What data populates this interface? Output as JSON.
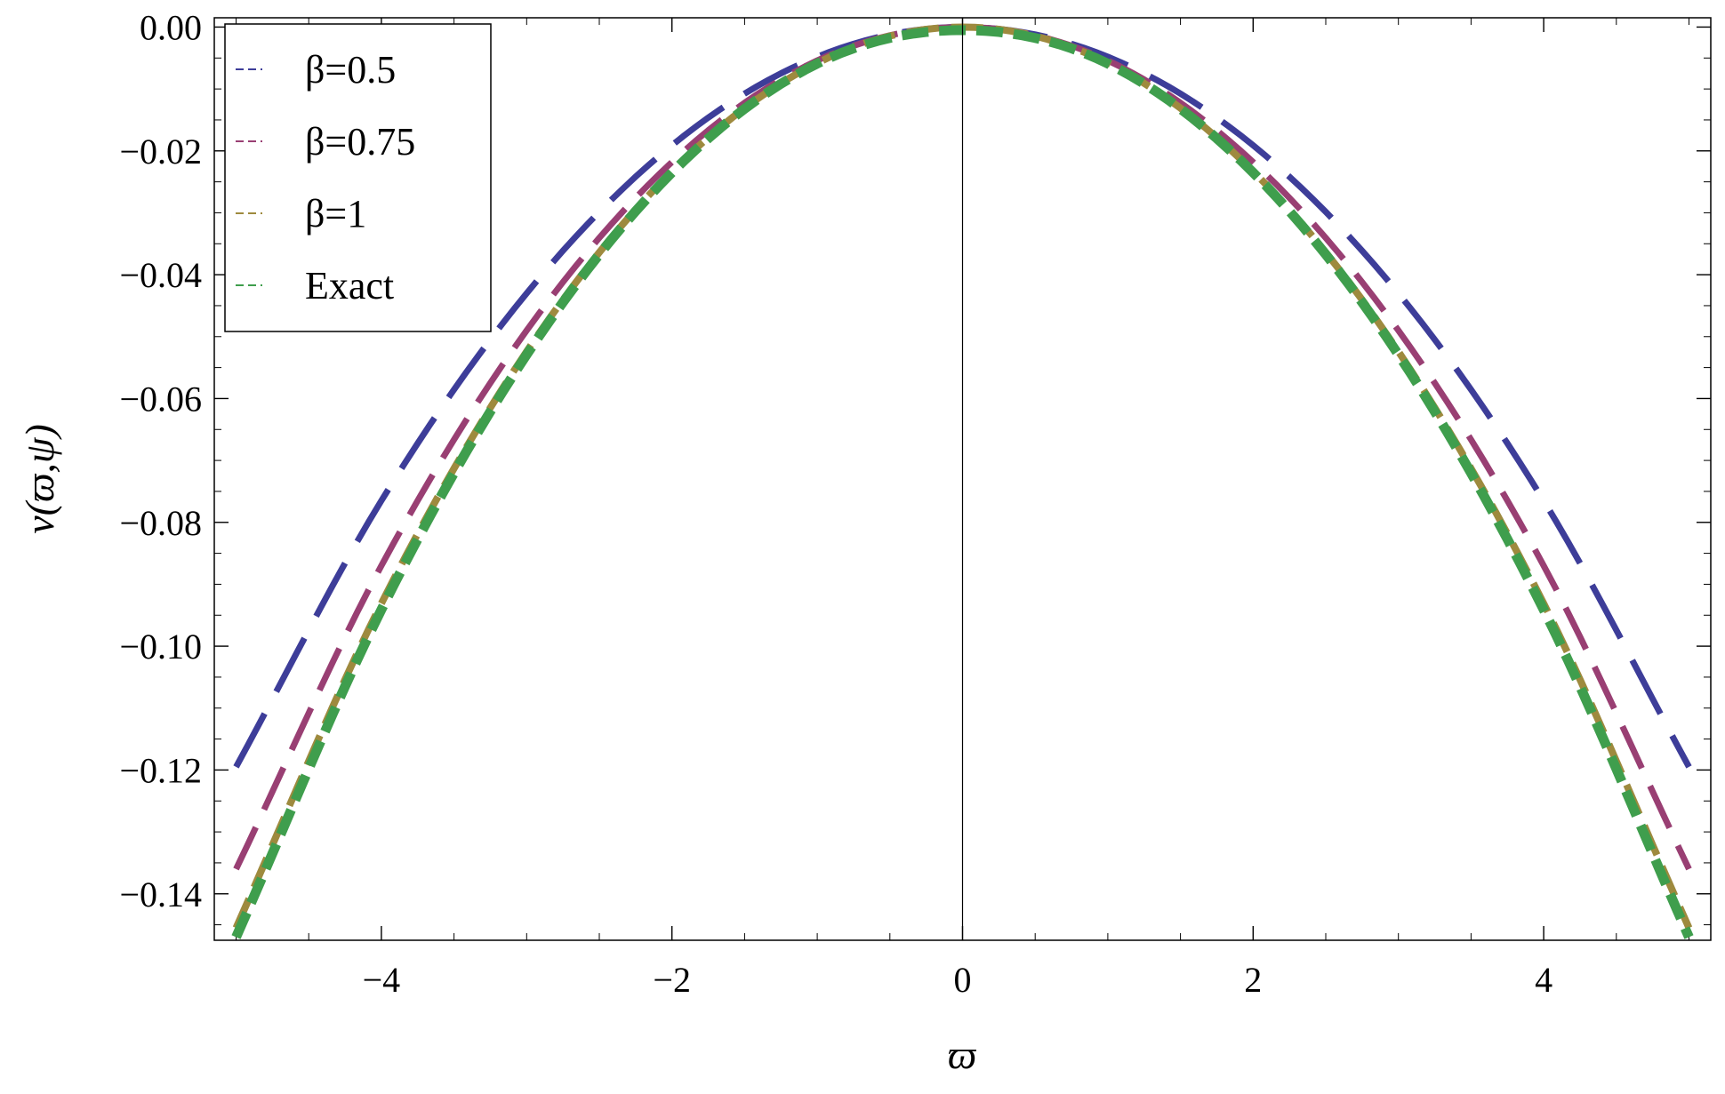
{
  "chart_data": {
    "type": "line",
    "xlabel": "ϖ",
    "ylabel": "ν(ϖ,ψ)",
    "xlim": [
      -5.15,
      5.15
    ],
    "ylim": [
      -0.1475,
      0.0015
    ],
    "x_ticks": [
      -4,
      -2,
      0,
      2,
      4
    ],
    "x_tick_labels": [
      "−4",
      "−2",
      "0",
      "2",
      "4"
    ],
    "y_ticks": [
      0,
      -0.02,
      -0.04,
      -0.06,
      -0.08,
      -0.1,
      -0.12,
      -0.14
    ],
    "y_tick_labels": [
      "0.00",
      "−0.02",
      "−0.04",
      "−0.06",
      "−0.08",
      "−0.10",
      "−0.12",
      "−0.14"
    ],
    "x_minor_step": 0.5,
    "y_minor_step": 0.005,
    "grid": false,
    "legend_position": "top-left",
    "series": [
      {
        "name": "β=0.5",
        "color": "#3d3d99",
        "dash": "long",
        "x": [
          -5,
          -4,
          -3,
          -2,
          -1,
          0,
          1,
          2,
          3,
          4,
          5
        ],
        "y": [
          -0.1195,
          -0.0765,
          -0.043,
          -0.0191,
          -0.0048,
          0,
          -0.0048,
          -0.0191,
          -0.043,
          -0.0765,
          -0.1195
        ]
      },
      {
        "name": "β=0.75",
        "color": "#993f73",
        "dash": "medium",
        "x": [
          -5,
          -4,
          -3,
          -2,
          -1,
          0,
          1,
          2,
          3,
          4,
          5
        ],
        "y": [
          -0.136,
          -0.087,
          -0.049,
          -0.0218,
          -0.0054,
          0,
          -0.0054,
          -0.0218,
          -0.049,
          -0.087,
          -0.136
        ]
      },
      {
        "name": "β=1",
        "color": "#9e8a3e",
        "dash": "short",
        "x": [
          -5,
          -4,
          -3,
          -2,
          -1,
          0,
          1,
          2,
          3,
          4,
          5
        ],
        "y": [
          -0.1455,
          -0.0931,
          -0.0524,
          -0.0233,
          -0.0058,
          0,
          -0.0058,
          -0.0233,
          -0.0524,
          -0.0931,
          -0.1455
        ]
      },
      {
        "name": "Exact",
        "color": "#3f9e4d",
        "dash": "thick",
        "x": [
          -5,
          -4,
          -3,
          -2,
          -1,
          0,
          1,
          2,
          3,
          4,
          5
        ],
        "y": [
          -0.147,
          -0.0941,
          -0.0529,
          -0.0235,
          -0.0059,
          -0.0005,
          -0.0059,
          -0.0235,
          -0.0529,
          -0.0941,
          -0.147
        ]
      }
    ]
  }
}
